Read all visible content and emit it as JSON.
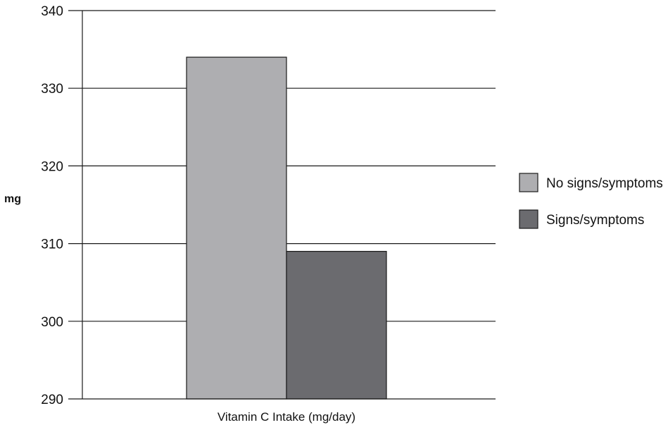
{
  "chart_data": {
    "type": "bar",
    "categories": [
      "Vitamin C Intake (mg/day)"
    ],
    "series": [
      {
        "name": "No signs/symptoms",
        "values": [
          334
        ],
        "color": "#aeaeb1"
      },
      {
        "name": "Signs/symptoms",
        "values": [
          309
        ],
        "color": "#6b6b6f"
      }
    ],
    "xlabel": "Vitamin C Intake (mg/day)",
    "ylabel": "mg",
    "ylim": [
      290,
      340
    ],
    "yticks": [
      290,
      300,
      310,
      320,
      330,
      340
    ],
    "grid": true,
    "legend": "right"
  }
}
